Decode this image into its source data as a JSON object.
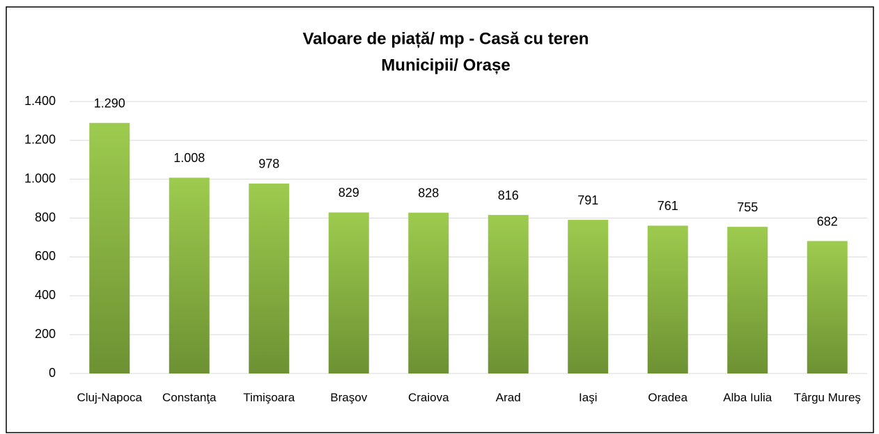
{
  "chart_data": {
    "type": "bar",
    "title": [
      "Valoare de piață/ mp - Casă cu teren",
      "Municipii/ Orașe"
    ],
    "categories": [
      "Cluj-Napoca",
      "Constanţa",
      "Timişoara",
      "Braşov",
      "Craiova",
      "Arad",
      "Iaşi",
      "Oradea",
      "Alba Iulia",
      "Târgu Mureş"
    ],
    "values": [
      1290,
      1008,
      978,
      829,
      828,
      816,
      791,
      761,
      755,
      682
    ],
    "value_labels": [
      "1.290",
      "1.008",
      "978",
      "829",
      "828",
      "816",
      "791",
      "761",
      "755",
      "682"
    ],
    "color": [
      "#9dcb4e",
      "#6d9133"
    ],
    "ylim": [
      0,
      1400
    ],
    "yticks": [
      0,
      200,
      400,
      600,
      800,
      {
        "value": 1000,
        "label": "1.000"
      },
      {
        "value": 1200,
        "label": "1.200"
      },
      {
        "value": 1400,
        "label": "1.400"
      }
    ],
    "grid": true
  }
}
